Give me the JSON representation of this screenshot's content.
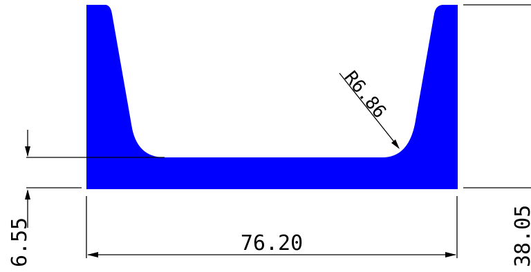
{
  "profile": {
    "color": "#0000ff"
  },
  "dimensions": {
    "width": "76.20",
    "height": "38.05",
    "base_thickness": "6.55",
    "radius": "R6.86"
  }
}
